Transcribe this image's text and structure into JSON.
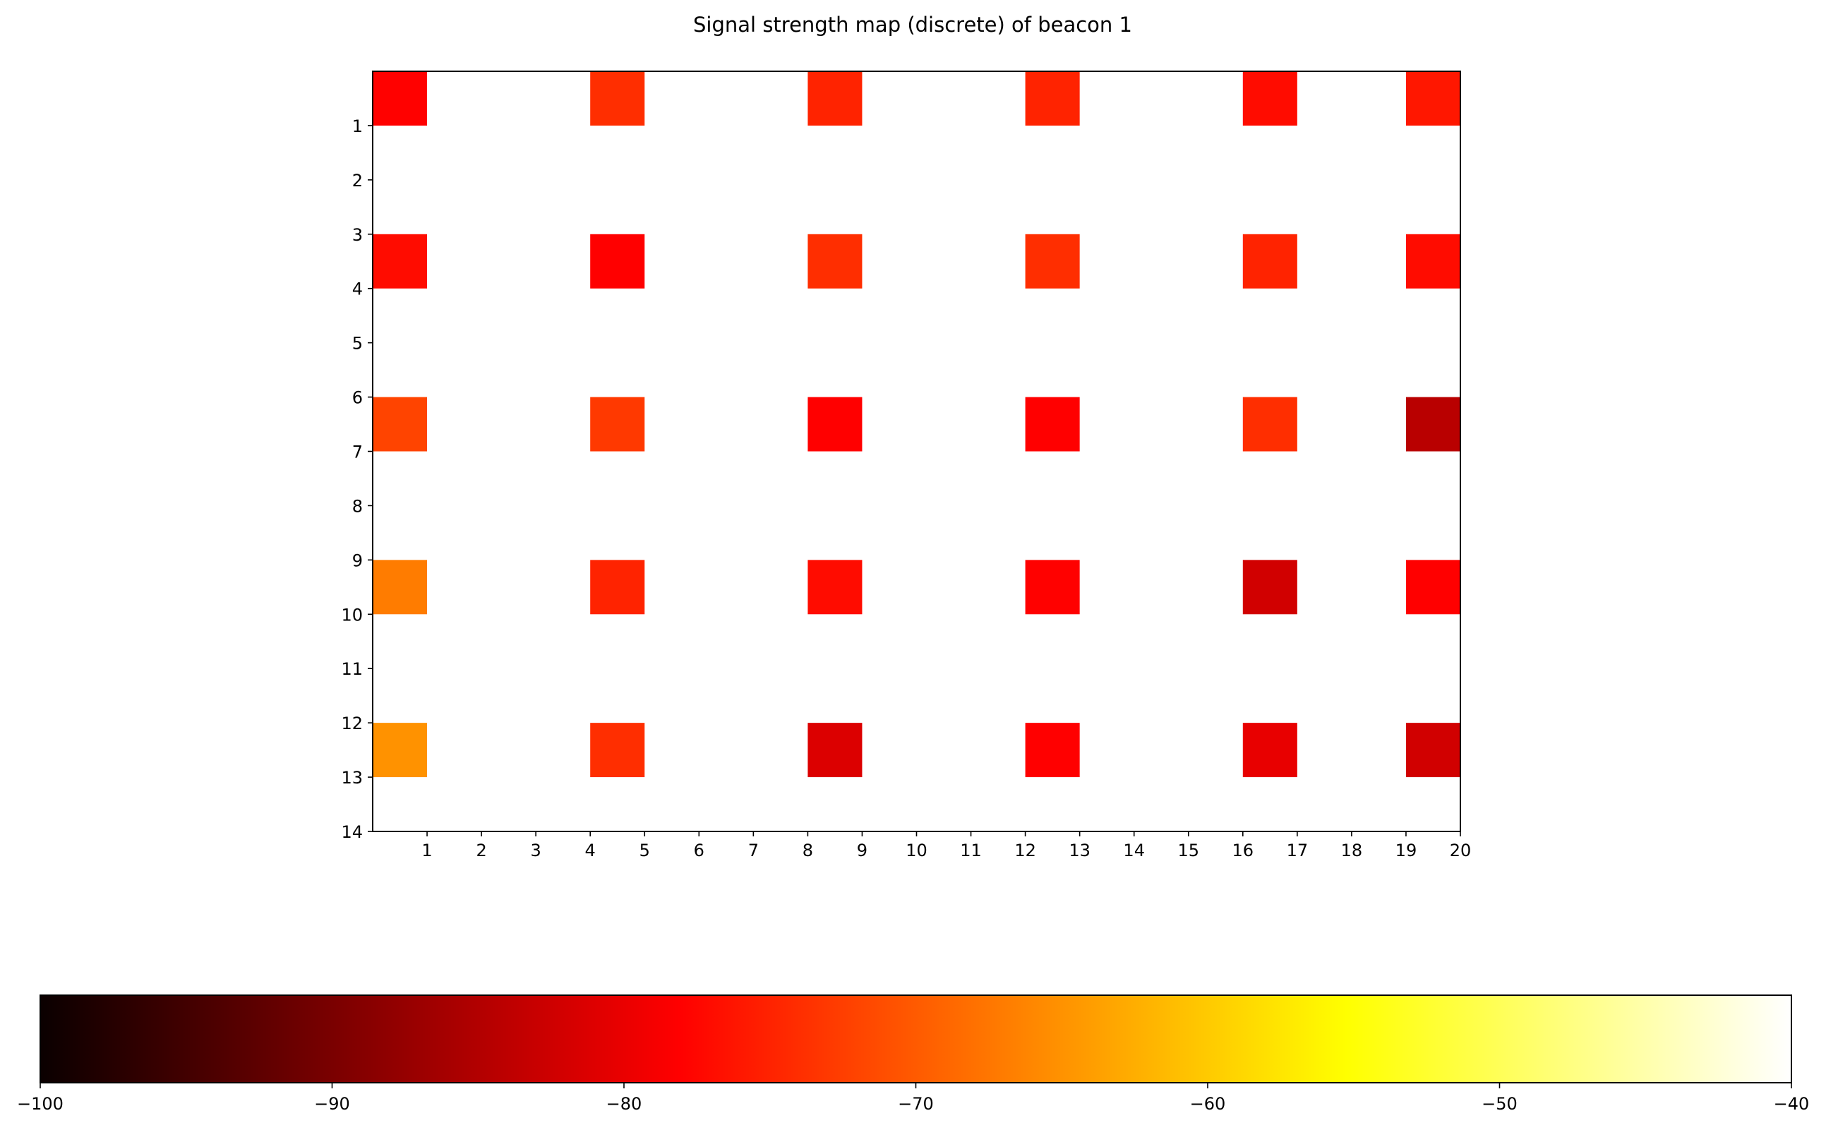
{
  "chart_data": {
    "type": "heatmap",
    "title": "Signal strength map (discrete) of beacon 1",
    "xlabel": "",
    "ylabel": "",
    "xlim": [
      0,
      20
    ],
    "ylim": [
      14,
      0
    ],
    "x_ticks": [
      1,
      2,
      3,
      4,
      5,
      6,
      7,
      8,
      9,
      10,
      11,
      12,
      13,
      14,
      15,
      16,
      17,
      18,
      19,
      20
    ],
    "y_ticks": [
      1,
      2,
      3,
      4,
      5,
      6,
      7,
      8,
      9,
      10,
      11,
      12,
      13,
      14
    ],
    "colormap": "hot",
    "color_range": [
      -100,
      -40
    ],
    "colorbar_ticks": [
      -100,
      -90,
      -80,
      -70,
      -60,
      -50,
      -40
    ],
    "colorbar_tick_labels": [
      "−100",
      "−90",
      "−80",
      "−70",
      "−60",
      "−50",
      "−40"
    ],
    "colorbar_orientation": "horizontal",
    "grid": false,
    "cell_size": 1,
    "cells": [
      {
        "x": 0,
        "y": 0,
        "value": -78
      },
      {
        "x": 4,
        "y": 0,
        "value": -74
      },
      {
        "x": 8,
        "y": 0,
        "value": -75
      },
      {
        "x": 12,
        "y": 0,
        "value": -75
      },
      {
        "x": 16,
        "y": 0,
        "value": -77
      },
      {
        "x": 19,
        "y": 0,
        "value": -76
      },
      {
        "x": 0,
        "y": 3,
        "value": -77
      },
      {
        "x": 4,
        "y": 3,
        "value": -79
      },
      {
        "x": 8,
        "y": 3,
        "value": -74
      },
      {
        "x": 12,
        "y": 3,
        "value": -74
      },
      {
        "x": 16,
        "y": 3,
        "value": -75
      },
      {
        "x": 19,
        "y": 3,
        "value": -77
      },
      {
        "x": 0,
        "y": 6,
        "value": -72
      },
      {
        "x": 4,
        "y": 6,
        "value": -73
      },
      {
        "x": 8,
        "y": 6,
        "value": -79
      },
      {
        "x": 12,
        "y": 6,
        "value": -79
      },
      {
        "x": 16,
        "y": 6,
        "value": -74
      },
      {
        "x": 19,
        "y": 6,
        "value": -85
      },
      {
        "x": 0,
        "y": 9,
        "value": -67
      },
      {
        "x": 4,
        "y": 9,
        "value": -75
      },
      {
        "x": 8,
        "y": 9,
        "value": -77
      },
      {
        "x": 12,
        "y": 9,
        "value": -78
      },
      {
        "x": 16,
        "y": 9,
        "value": -83
      },
      {
        "x": 19,
        "y": 9,
        "value": -79
      },
      {
        "x": 0,
        "y": 12,
        "value": -65
      },
      {
        "x": 4,
        "y": 12,
        "value": -74
      },
      {
        "x": 8,
        "y": 12,
        "value": -82
      },
      {
        "x": 12,
        "y": 12,
        "value": -79
      },
      {
        "x": 16,
        "y": 12,
        "value": -81
      },
      {
        "x": 19,
        "y": 12,
        "value": -83
      }
    ]
  }
}
